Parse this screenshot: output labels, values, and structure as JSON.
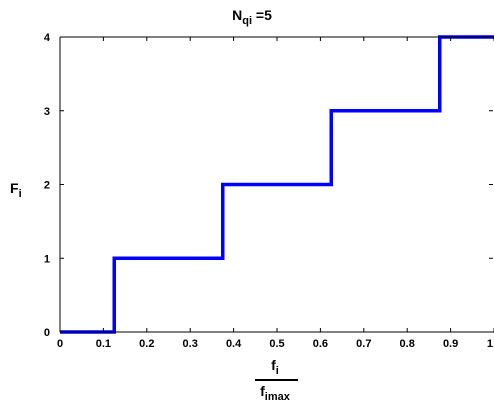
{
  "chart_data": {
    "type": "line",
    "style": "step",
    "title": {
      "main": "N",
      "sub": "qi",
      "rest": " =5"
    },
    "ylabel": {
      "main": "F",
      "sub": "i"
    },
    "xlabel": {
      "numerator": {
        "main": "f",
        "sub": "i"
      },
      "denominator": {
        "main": "f",
        "sub": "imax"
      }
    },
    "xlim": [
      0,
      1
    ],
    "ylim": [
      0,
      4
    ],
    "x_ticks": [
      0,
      0.1,
      0.2,
      0.3,
      0.4,
      0.5,
      0.6,
      0.7,
      0.8,
      0.9,
      1
    ],
    "x_tick_labels": [
      "0",
      "0.1",
      "0.2",
      "0.3",
      "0.4",
      "0.5",
      "0.6",
      "0.7",
      "0.8",
      "0.9",
      "1"
    ],
    "y_ticks": [
      0,
      1,
      2,
      3,
      4
    ],
    "y_tick_labels": [
      "0",
      "1",
      "2",
      "3",
      "4"
    ],
    "grid": false,
    "series": [
      {
        "color": "#0000ff",
        "x": [
          0,
          0.125,
          0.125,
          0.375,
          0.375,
          0.625,
          0.625,
          0.875,
          0.875,
          1
        ],
        "y": [
          0,
          0,
          1,
          1,
          2,
          2,
          3,
          3,
          4,
          4
        ]
      }
    ]
  }
}
